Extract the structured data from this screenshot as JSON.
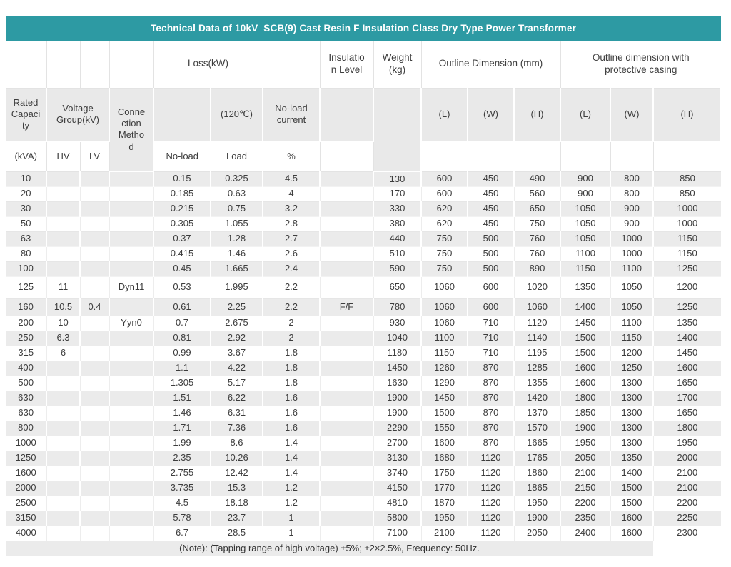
{
  "title": "Technical Data of 10kV  SCB(9) Cast Resin F Insulation Class Dry Type Power Transformer",
  "note": "(Note): (Tapping range of high voltage) ±5%; ±2×2.5%, Frequency: 50Hz.",
  "colors": {
    "header_teal": "#2D9AA3",
    "stripe_gray": "#EBEBEB",
    "header_gray": "#E9E9E9",
    "title_text": "#FFFFFF",
    "body_text": "#3D3D3D"
  },
  "header": {
    "row1": {
      "loss": "Loss(kW)",
      "insulation": "Insulatio\nn Level",
      "weight": "Weight\n(kg)",
      "outline": "Outline Dimension (mm)",
      "outline_casing": "Outline dimension with\nprotective casing"
    },
    "row2": {
      "rated_capacity": "Rated\nCapaci\nty",
      "voltage_group": "Voltage\nGroup(kV)",
      "connection": "Conne\nction\nMetho\nd",
      "temp": "(120℃)",
      "no_load_current": "No-load\ncurrent",
      "dims": [
        "(L)",
        "(W)",
        "(H)",
        "(L)",
        "(W)",
        "(H)"
      ]
    },
    "row3": {
      "kva": "(kVA)",
      "hv": "HV",
      "lv": "LV",
      "no_load": "No-load",
      "load": "Load",
      "percent": "%"
    }
  },
  "rows": [
    [
      "10",
      "",
      "",
      "",
      "0.15",
      "0.325",
      "4.5",
      "",
      "130",
      "600",
      "450",
      "490",
      "900",
      "800",
      "850"
    ],
    [
      "20",
      "",
      "",
      "",
      "0.185",
      "0.63",
      "4",
      "",
      "170",
      "600",
      "450",
      "560",
      "900",
      "800",
      "850"
    ],
    [
      "30",
      "",
      "",
      "",
      "0.215",
      "0.75",
      "3.2",
      "",
      "330",
      "620",
      "450",
      "650",
      "1050",
      "900",
      "1000"
    ],
    [
      "50",
      "",
      "",
      "",
      "0.305",
      "1.055",
      "2.8",
      "",
      "380",
      "620",
      "450",
      "750",
      "1050",
      "900",
      "1000"
    ],
    [
      "63",
      "",
      "",
      "",
      "0.37",
      "1.28",
      "2.7",
      "",
      "440",
      "750",
      "500",
      "760",
      "1050",
      "1000",
      "1150"
    ],
    [
      "80",
      "",
      "",
      "",
      "0.415",
      "1.46",
      "2.6",
      "",
      "510",
      "750",
      "500",
      "760",
      "1100",
      "1000",
      "1150"
    ],
    [
      "100",
      "",
      "",
      "",
      "0.45",
      "1.665",
      "2.4",
      "",
      "590",
      "750",
      "500",
      "890",
      "1150",
      "1100",
      "1250"
    ],
    [
      "125",
      "11",
      "",
      "Dyn11",
      "0.53",
      "1.995",
      "2.2",
      "",
      "650",
      "1060",
      "600",
      "1020",
      "1350",
      "1050",
      "1200"
    ],
    [
      "160",
      "10.5",
      "0.4",
      "",
      "0.61",
      "2.25",
      "2.2",
      "F/F",
      "780",
      "1060",
      "600",
      "1060",
      "1400",
      "1050",
      "1250"
    ],
    [
      "200",
      "10",
      "",
      "Yyn0",
      "0.7",
      "2.675",
      "2",
      "",
      "930",
      "1060",
      "710",
      "1120",
      "1450",
      "1100",
      "1350"
    ],
    [
      "250",
      "6.3",
      "",
      "",
      "0.81",
      "2.92",
      "2",
      "",
      "1040",
      "1100",
      "710",
      "1140",
      "1500",
      "1150",
      "1400"
    ],
    [
      "315",
      "6",
      "",
      "",
      "0.99",
      "3.67",
      "1.8",
      "",
      "1180",
      "1150",
      "710",
      "1195",
      "1500",
      "1200",
      "1450"
    ],
    [
      "400",
      "",
      "",
      "",
      "1.1",
      "4.22",
      "1.8",
      "",
      "1450",
      "1260",
      "870",
      "1285",
      "1600",
      "1250",
      "1600"
    ],
    [
      "500",
      "",
      "",
      "",
      "1.305",
      "5.17",
      "1.8",
      "",
      "1630",
      "1290",
      "870",
      "1355",
      "1600",
      "1300",
      "1650"
    ],
    [
      "630",
      "",
      "",
      "",
      "1.51",
      "6.22",
      "1.6",
      "",
      "1900",
      "1450",
      "870",
      "1420",
      "1800",
      "1300",
      "1700"
    ],
    [
      "630",
      "",
      "",
      "",
      "1.46",
      "6.31",
      "1.6",
      "",
      "1900",
      "1500",
      "870",
      "1370",
      "1850",
      "1300",
      "1650"
    ],
    [
      "800",
      "",
      "",
      "",
      "1.71",
      "7.36",
      "1.6",
      "",
      "2290",
      "1550",
      "870",
      "1570",
      "1900",
      "1300",
      "1800"
    ],
    [
      "1000",
      "",
      "",
      "",
      "1.99",
      "8.6",
      "1.4",
      "",
      "2700",
      "1600",
      "870",
      "1665",
      "1950",
      "1300",
      "1950"
    ],
    [
      "1250",
      "",
      "",
      "",
      "2.35",
      "10.26",
      "1.4",
      "",
      "3130",
      "1680",
      "1120",
      "1765",
      "2050",
      "1350",
      "2000"
    ],
    [
      "1600",
      "",
      "",
      "",
      "2.755",
      "12.42",
      "1.4",
      "",
      "3740",
      "1750",
      "1120",
      "1860",
      "2100",
      "1400",
      "2100"
    ],
    [
      "2000",
      "",
      "",
      "",
      "3.735",
      "15.3",
      "1.2",
      "",
      "4150",
      "1770",
      "1120",
      "1865",
      "2150",
      "1500",
      "2100"
    ],
    [
      "2500",
      "",
      "",
      "",
      "4.5",
      "18.18",
      "1.2",
      "",
      "4810",
      "1870",
      "1120",
      "1950",
      "2200",
      "1500",
      "2200"
    ],
    [
      "3150",
      "",
      "",
      "",
      "5.78",
      "23.7",
      "1",
      "",
      "5800",
      "1950",
      "1120",
      "1900",
      "2350",
      "1600",
      "2250"
    ],
    [
      "4000",
      "",
      "",
      "",
      "6.7",
      "28.5",
      "1",
      "",
      "7100",
      "2100",
      "1120",
      "2050",
      "2400",
      "1600",
      "2300"
    ]
  ]
}
